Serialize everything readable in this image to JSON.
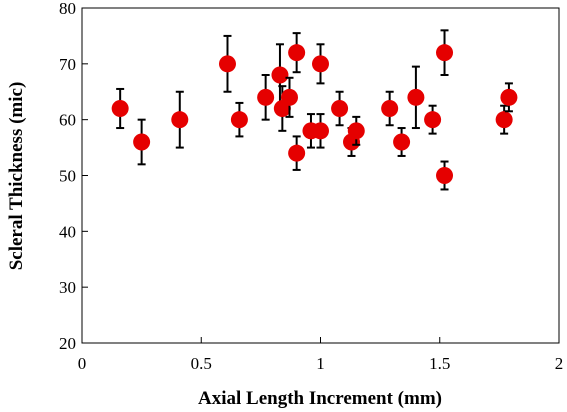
{
  "chart_data": {
    "type": "scatter",
    "title": "",
    "xlabel": "Axial Length Increment (mm)",
    "ylabel": "Scleral Thickness (mic)",
    "xlim": [
      0,
      2
    ],
    "ylim": [
      20,
      80
    ],
    "x_ticks": [
      0,
      0.5,
      1,
      1.5,
      2
    ],
    "x_tick_labels": [
      "0",
      "0.5",
      "1",
      "1.5",
      "2"
    ],
    "y_ticks": [
      20,
      30,
      40,
      50,
      60,
      70,
      80
    ],
    "y_tick_labels": [
      "20",
      "30",
      "40",
      "50",
      "60",
      "70",
      "80"
    ],
    "grid": false,
    "legend": "none",
    "marker_color": "#e50000",
    "error_bar_color": "#000000",
    "points": [
      {
        "x": 0.16,
        "y": 62,
        "err_up": 3.5,
        "err_down": 3.5
      },
      {
        "x": 0.25,
        "y": 56,
        "err_up": 4,
        "err_down": 4
      },
      {
        "x": 0.41,
        "y": 60,
        "err_up": 5,
        "err_down": 5
      },
      {
        "x": 0.61,
        "y": 70,
        "err_up": 5,
        "err_down": 5
      },
      {
        "x": 0.66,
        "y": 60,
        "err_up": 3,
        "err_down": 3
      },
      {
        "x": 0.77,
        "y": 64,
        "err_up": 4,
        "err_down": 4
      },
      {
        "x": 0.83,
        "y": 68,
        "err_up": 5.5,
        "err_down": 5.5
      },
      {
        "x": 0.84,
        "y": 62,
        "err_up": 4,
        "err_down": 4
      },
      {
        "x": 0.87,
        "y": 64,
        "err_up": 3.5,
        "err_down": 3.5
      },
      {
        "x": 0.9,
        "y": 72,
        "err_up": 3.5,
        "err_down": 3.5
      },
      {
        "x": 0.9,
        "y": 54,
        "err_up": 3,
        "err_down": 3
      },
      {
        "x": 0.96,
        "y": 58,
        "err_up": 3,
        "err_down": 3
      },
      {
        "x": 1.0,
        "y": 70,
        "err_up": 3.5,
        "err_down": 3.5
      },
      {
        "x": 1.0,
        "y": 58,
        "err_up": 3,
        "err_down": 3
      },
      {
        "x": 1.08,
        "y": 62,
        "err_up": 3,
        "err_down": 3
      },
      {
        "x": 1.13,
        "y": 56,
        "err_up": 2.5,
        "err_down": 2.5
      },
      {
        "x": 1.15,
        "y": 58,
        "err_up": 2.5,
        "err_down": 2.5
      },
      {
        "x": 1.29,
        "y": 62,
        "err_up": 3,
        "err_down": 3
      },
      {
        "x": 1.34,
        "y": 56,
        "err_up": 2.5,
        "err_down": 2.5
      },
      {
        "x": 1.4,
        "y": 64,
        "err_up": 5.5,
        "err_down": 5.5
      },
      {
        "x": 1.47,
        "y": 60,
        "err_up": 2.5,
        "err_down": 2.5
      },
      {
        "x": 1.52,
        "y": 72,
        "err_up": 4,
        "err_down": 4
      },
      {
        "x": 1.52,
        "y": 50,
        "err_up": 2.5,
        "err_down": 2.5
      },
      {
        "x": 1.77,
        "y": 60,
        "err_up": 2.5,
        "err_down": 2.5
      },
      {
        "x": 1.79,
        "y": 64,
        "err_up": 2.5,
        "err_down": 2.5
      }
    ]
  }
}
